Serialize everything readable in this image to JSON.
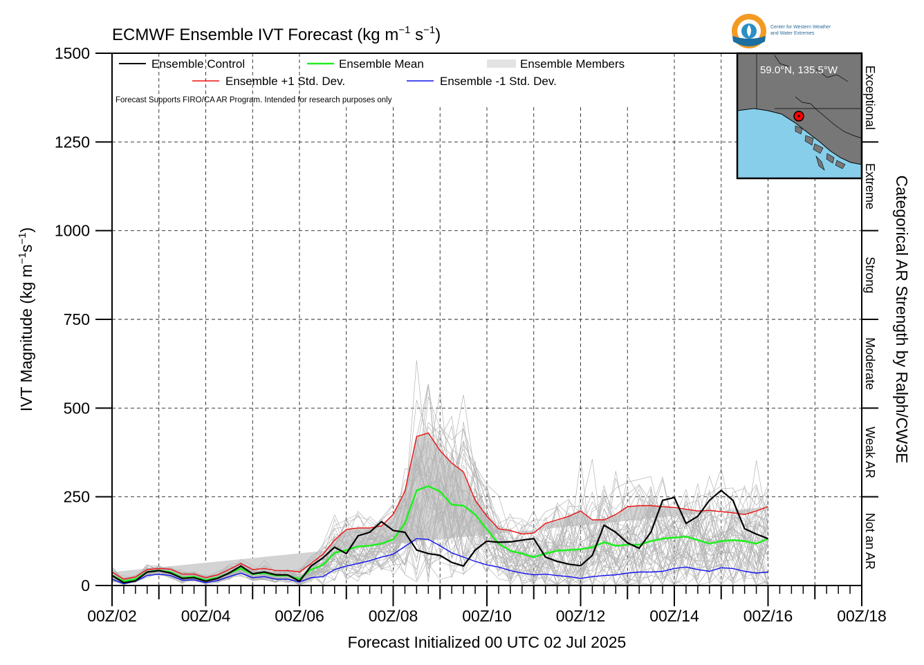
{
  "header": {
    "title_main": "ECMWF Ensemble IVT Forecast (kg m",
    "title_exp1": "−1",
    "title_mid": " s",
    "title_exp2": "−1",
    "title_end": ")"
  },
  "logo": {
    "line1": "Center for Western Weather",
    "line2": "and Water Extremes",
    "icon": "cw3e-logo-icon"
  },
  "inset_map": {
    "location_label": "59.0°N, 135.5°W",
    "land_color": "#777777",
    "ocean_color": "#87ceeb",
    "marker_color": "#ff0000"
  },
  "disclaimer": "Forecast Supports FIRO/CA AR Program. Intended for research purposes only",
  "legend": {
    "control": "Ensemble Control",
    "mean": "Ensemble Mean",
    "members": "Ensemble Members",
    "plus_std": "Ensemble +1 Std. Dev.",
    "minus_std": "Ensemble -1 Std. Dev."
  },
  "right_axis": {
    "title": "Categorical AR Strength by Ralph/CW3E",
    "categories": [
      "Not an AR",
      "Weak AR",
      "Moderate",
      "Strong",
      "Extreme",
      "Exceptional"
    ]
  },
  "chart_data": {
    "type": "line",
    "title": "ECMWF Ensemble IVT Forecast (kg m−1 s−1)",
    "xlabel": "Forecast Initialized 00 UTC 02 Jul 2025",
    "ylabel_main": "IVT Magnitude (kg m",
    "ylabel_exp1": "−1",
    "ylabel_mid": "s",
    "ylabel_exp2": "−1",
    "ylabel_end": ")",
    "ylim": [
      0,
      1500
    ],
    "yticks": [
      0,
      250,
      500,
      750,
      1000,
      1250,
      1500
    ],
    "xlim_days": [
      2,
      18
    ],
    "xtick_labels": [
      "00Z/02",
      "00Z/04",
      "00Z/06",
      "00Z/08",
      "00Z/10",
      "00Z/12",
      "00Z/14",
      "00Z/16",
      "00Z/18"
    ],
    "x_step_hours": 6,
    "grid": true,
    "legend_position": "top",
    "ar_thresholds": [
      250,
      500,
      750,
      1000,
      1250
    ],
    "colors": {
      "control": "#000000",
      "mean": "#22ee22",
      "plus_std": "#ee1111",
      "minus_std": "#1111ee",
      "members": "#b4b4b4",
      "spread": "#d3d3d3"
    },
    "x_days": [
      2.0,
      2.25,
      2.5,
      2.75,
      3.0,
      3.25,
      3.5,
      3.75,
      4.0,
      4.25,
      4.5,
      4.75,
      5.0,
      5.25,
      5.5,
      5.75,
      6.0,
      6.25,
      6.5,
      6.75,
      7.0,
      7.25,
      7.5,
      7.75,
      8.0,
      8.25,
      8.5,
      8.75,
      9.0,
      9.25,
      9.5,
      9.75,
      10.0,
      10.25,
      10.5,
      10.75,
      11.0,
      11.25,
      11.5,
      11.75,
      12.0,
      12.25,
      12.5,
      12.75,
      13.0,
      13.25,
      13.5,
      13.75,
      14.0,
      14.25,
      14.5,
      14.75,
      15.0,
      15.25,
      15.5,
      15.75,
      16.0,
      16.25,
      16.5,
      16.75,
      17.0
    ],
    "series": [
      {
        "name": "Ensemble Control",
        "key": "control",
        "values": [
          28,
          8,
          13,
          38,
          42,
          35,
          20,
          22,
          12,
          20,
          35,
          55,
          33,
          38,
          30,
          30,
          12,
          55,
          78,
          108,
          90,
          140,
          150,
          180,
          155,
          150,
          100,
          90,
          85,
          65,
          55,
          100,
          125,
          122,
          123,
          128,
          132,
          80,
          68,
          60,
          56,
          85,
          170,
          150,
          120,
          105,
          150,
          240,
          248,
          175,
          195,
          240,
          268,
          240,
          160,
          145,
          132
        ]
      },
      {
        "name": "Ensemble Mean",
        "key": "mean",
        "values": [
          28,
          12,
          18,
          38,
          42,
          38,
          22,
          25,
          15,
          22,
          35,
          48,
          32,
          35,
          28,
          28,
          18,
          45,
          58,
          92,
          100,
          110,
          112,
          118,
          130,
          175,
          268,
          280,
          265,
          228,
          225,
          200,
          158,
          118,
          98,
          90,
          80,
          90,
          98,
          100,
          102,
          108,
          122,
          112,
          115,
          115,
          125,
          132,
          135,
          138,
          128,
          118,
          125,
          128,
          125,
          118,
          132
        ]
      },
      {
        "name": "Ensemble +1 Std. Dev.",
        "key": "plus_std",
        "values": [
          38,
          18,
          24,
          45,
          48,
          46,
          32,
          32,
          22,
          30,
          45,
          62,
          45,
          48,
          42,
          42,
          38,
          62,
          88,
          128,
          158,
          162,
          162,
          168,
          200,
          265,
          420,
          430,
          380,
          345,
          320,
          240,
          195,
          160,
          155,
          145,
          148,
          175,
          185,
          195,
          210,
          185,
          185,
          200,
          222,
          225,
          225,
          222,
          220,
          215,
          210,
          212,
          208,
          205,
          200,
          210,
          222
        ]
      },
      {
        "name": "Ensemble -1 Std. Dev.",
        "key": "minus_std",
        "values": [
          18,
          5,
          12,
          28,
          32,
          28,
          15,
          16,
          8,
          14,
          25,
          35,
          22,
          25,
          18,
          18,
          10,
          22,
          25,
          45,
          55,
          62,
          70,
          80,
          88,
          110,
          132,
          130,
          112,
          92,
          80,
          68,
          58,
          52,
          42,
          35,
          30,
          32,
          28,
          25,
          20,
          25,
          28,
          30,
          35,
          38,
          38,
          40,
          48,
          52,
          45,
          40,
          50,
          48,
          40,
          35,
          38
        ]
      }
    ],
    "member_count": 50
  }
}
